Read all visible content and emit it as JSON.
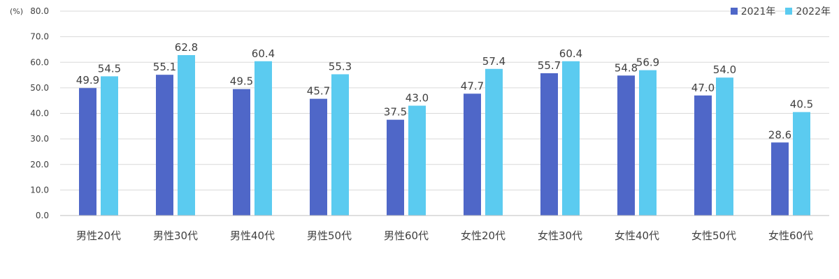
{
  "chart_data": {
    "type": "bar",
    "title": "",
    "y_unit": "(%)",
    "categories": [
      "男性20代",
      "男性30代",
      "男性40代",
      "男性50代",
      "男性60代",
      "女性20代",
      "女性30代",
      "女性40代",
      "女性50代",
      "女性60代"
    ],
    "series": [
      {
        "name": "2021年",
        "color": "#4F67C8",
        "values": [
          49.9,
          55.1,
          49.5,
          45.7,
          37.5,
          47.7,
          55.7,
          54.8,
          47.0,
          28.6
        ]
      },
      {
        "name": "2022年",
        "color": "#5BCBF0",
        "values": [
          54.5,
          62.8,
          60.4,
          55.3,
          43.0,
          57.4,
          60.4,
          56.9,
          54.0,
          40.5
        ]
      }
    ],
    "ylim": [
      0,
      80
    ],
    "yticks": [
      0,
      10,
      20,
      30,
      40,
      50,
      60,
      70,
      80
    ],
    "grid": true,
    "legend_position": "top-right",
    "data_labels": true
  }
}
